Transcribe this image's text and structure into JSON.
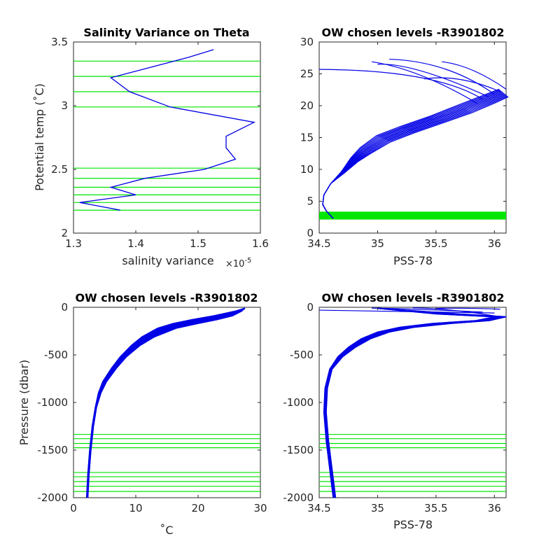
{
  "colors": {
    "profile": "#0000e6",
    "level": "#00e600",
    "axis": "#262626"
  },
  "chart_data": [
    {
      "type": "line",
      "title": "Salinity Variance on Theta",
      "xlabel": "salinity variance",
      "xexponent": "×10",
      "xexponent_power": "-5",
      "ylabel": "Potential temp (˚C)",
      "xlim": [
        1.3,
        1.6
      ],
      "ylim": [
        2,
        3.5
      ],
      "xticks": [
        1.3,
        1.4,
        1.5,
        1.6
      ],
      "xtick_labels": [
        "1.3",
        "1.4",
        "1.5",
        "1.6"
      ],
      "yticks": [
        2,
        2.5,
        3,
        3.5
      ],
      "ytick_labels": [
        "2",
        "2.5",
        "3",
        "3.5"
      ],
      "series": [
        {
          "x": [
            1.375,
            1.31,
            1.4,
            1.36,
            1.415,
            1.51,
            1.56,
            1.545,
            1.545,
            1.59,
            1.455,
            1.39,
            1.36,
            1.485,
            1.525
          ],
          "y": [
            2.18,
            2.24,
            2.3,
            2.36,
            2.43,
            2.5,
            2.58,
            2.67,
            2.76,
            2.87,
            2.99,
            3.11,
            3.22,
            3.38,
            3.44
          ]
        }
      ],
      "levels": [
        2.18,
        2.24,
        2.3,
        2.36,
        2.43,
        2.51,
        2.99,
        3.11,
        3.23,
        3.35
      ]
    },
    {
      "type": "line",
      "title": "OW chosen levels -R3901802",
      "xlabel": "PSS-78",
      "ylabel": "",
      "xlim": [
        34.5,
        36.1
      ],
      "ylim": [
        0,
        30
      ],
      "xticks": [
        34.5,
        35,
        35.5,
        36
      ],
      "xtick_labels": [
        "34.5",
        "35",
        "35.5",
        "36"
      ],
      "yticks": [
        0,
        5,
        10,
        15,
        20,
        25,
        30
      ],
      "ytick_labels": [
        "0",
        "5",
        "10",
        "15",
        "20",
        "25",
        "30"
      ],
      "profile": {
        "x": [
          34.62,
          34.56,
          34.53,
          34.54,
          34.6,
          34.7,
          34.8,
          34.9,
          35.05,
          35.25,
          35.5,
          35.75,
          35.95,
          36.08
        ],
        "y": [
          2.3,
          3.5,
          4.5,
          6.0,
          7.8,
          9.5,
          11.5,
          13.0,
          14.8,
          16.2,
          17.8,
          19.5,
          21.0,
          22.0
        ]
      },
      "spread_pss": [
        0.0,
        0.0,
        0.0,
        0.0,
        0.0,
        0.01,
        0.03,
        0.05,
        0.06,
        0.06,
        0.06,
        0.06,
        0.05,
        0.04
      ],
      "spread_temp": [
        0.0,
        0.0,
        0.0,
        0.0,
        0.0,
        0.15,
        0.3,
        0.4,
        0.5,
        0.5,
        0.5,
        0.6,
        0.6,
        0.6
      ],
      "surface_wisps": [
        {
          "from": [
            35.9,
            21.0
          ],
          "to": [
            35.5,
            25.6
          ],
          "end": [
            34.5,
            25.7
          ]
        },
        {
          "from": [
            35.95,
            21.4
          ],
          "to": [
            35.3,
            26.8
          ],
          "end": [
            35.0,
            26.5
          ]
        },
        {
          "from": [
            36.0,
            21.8
          ],
          "to": [
            35.6,
            27.0
          ],
          "end": [
            35.1,
            27.3
          ]
        },
        {
          "from": [
            36.05,
            22.2
          ],
          "to": [
            35.7,
            25.0
          ],
          "end": [
            35.4,
            24.2
          ]
        },
        {
          "from": [
            35.85,
            20.4
          ],
          "to": [
            35.35,
            25.8
          ],
          "end": [
            34.95,
            26.9
          ]
        },
        {
          "from": [
            36.1,
            22.6
          ],
          "to": [
            35.8,
            26.4
          ],
          "end": [
            35.55,
            26.9
          ]
        }
      ],
      "levels": [
        2.3,
        2.6,
        2.9,
        3.2
      ]
    },
    {
      "type": "line",
      "title": "OW chosen levels -R3901802",
      "xlabel": "˚C",
      "ylabel": "Pressure (dbar)",
      "xlim": [
        0,
        30
      ],
      "ylim": [
        -2000,
        0
      ],
      "xticks": [
        0,
        10,
        20,
        30
      ],
      "xtick_labels": [
        "0",
        "10",
        "20",
        "30"
      ],
      "yticks": [
        -2000,
        -1500,
        -1000,
        -500,
        0
      ],
      "ytick_labels": [
        "-2000",
        "-1500",
        "-1000",
        "-500",
        "0"
      ],
      "profile": {
        "x": [
          27.5,
          26.5,
          24.0,
          21.0,
          18.0,
          15.0,
          12.0,
          10.0,
          8.0,
          6.5,
          5.0,
          4.2,
          3.6,
          3.1,
          2.7,
          2.4,
          2.2
        ],
        "y": [
          -10,
          -40,
          -90,
          -130,
          -170,
          -220,
          -310,
          -400,
          -520,
          -640,
          -780,
          -900,
          -1050,
          -1250,
          -1500,
          -1750,
          -2000
        ]
      },
      "spread_temp": [
        0.0,
        0.5,
        1.5,
        2.0,
        2.0,
        1.5,
        1.0,
        0.7,
        0.5,
        0.4,
        0.3,
        0.2,
        0.1,
        0.1,
        0.1,
        0.1,
        0.1
      ],
      "levels": [
        -1335,
        -1380,
        -1430,
        -1475,
        -1735,
        -1780,
        -1830,
        -1880,
        -1935
      ]
    },
    {
      "type": "line",
      "title": "OW chosen levels -R3901802",
      "xlabel": "PSS-78",
      "ylabel": "",
      "xlim": [
        34.5,
        36.1
      ],
      "ylim": [
        -2000,
        0
      ],
      "xticks": [
        34.5,
        35,
        35.5,
        36
      ],
      "xtick_labels": [
        "34.5",
        "35",
        "35.5",
        "36"
      ],
      "yticks": [
        -2000,
        -1500,
        -1000,
        -500,
        0
      ],
      "ytick_labels": [
        "-2000",
        "-1500",
        "-1000",
        "-500",
        "0"
      ],
      "profile": {
        "x": [
          35.0,
          35.6,
          36.05,
          35.9,
          35.55,
          35.25,
          35.05,
          34.9,
          34.78,
          34.68,
          34.6,
          34.56,
          34.55,
          34.57,
          34.6,
          34.63
        ],
        "y": [
          -10,
          -70,
          -100,
          -140,
          -170,
          -210,
          -260,
          -330,
          -420,
          -520,
          -650,
          -850,
          -1100,
          -1400,
          -1700,
          -2000
        ]
      },
      "spread_pss": [
        0.0,
        0.1,
        0.05,
        0.06,
        0.08,
        0.06,
        0.05,
        0.04,
        0.03,
        0.02,
        0.01,
        0.01,
        0.01,
        0.01,
        0.01,
        0.01
      ],
      "surface_wisps": [
        {
          "from": [
            36.0,
            -60
          ],
          "to": [
            35.0,
            -40
          ],
          "end": [
            34.5,
            -30
          ]
        },
        {
          "from": [
            36.0,
            -90
          ],
          "to": [
            35.6,
            -10
          ],
          "end": [
            35.3,
            -5
          ]
        },
        {
          "from": [
            35.9,
            -50
          ],
          "to": [
            35.3,
            -15
          ],
          "end": [
            34.95,
            -8
          ]
        },
        {
          "from": [
            36.05,
            -20
          ],
          "to": [
            35.75,
            -5
          ],
          "end": [
            35.5,
            -12
          ]
        }
      ],
      "levels": [
        -1335,
        -1380,
        -1430,
        -1475,
        -1735,
        -1780,
        -1830,
        -1880,
        -1935
      ]
    }
  ]
}
